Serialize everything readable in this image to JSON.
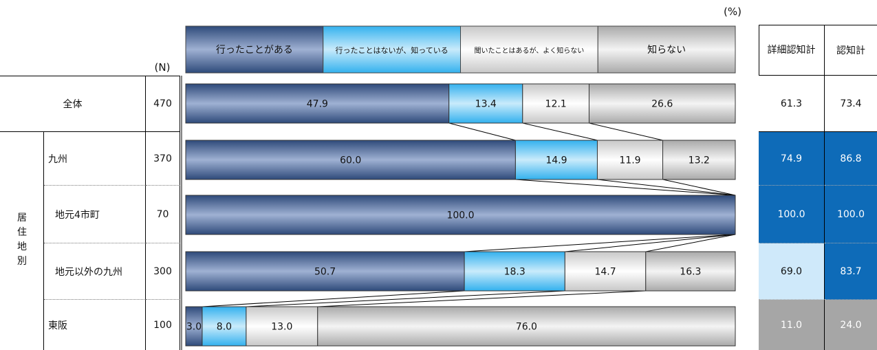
{
  "percent_unit": "(%)",
  "n_header": "(N)",
  "group_label": [
    "居",
    "住",
    "地",
    "別"
  ],
  "summary_headers": [
    "詳細認知計",
    "認知計"
  ],
  "chart_data": {
    "type": "bar",
    "stacked": true,
    "orientation": "horizontal",
    "xlim": [
      0,
      100
    ],
    "series": [
      {
        "name": "行ったことがある",
        "values": [
          47.9,
          60.0,
          100.0,
          50.7,
          3.0
        ]
      },
      {
        "name": "行ったことはないが、知っている",
        "values": [
          13.4,
          14.9,
          0,
          18.3,
          8.0
        ]
      },
      {
        "name": "聞いたことはあるが、よく知らない",
        "values": [
          12.1,
          11.9,
          0,
          14.7,
          13.0
        ]
      },
      {
        "name": "知らない",
        "values": [
          26.6,
          13.2,
          0,
          16.3,
          76.0
        ]
      }
    ],
    "colors": [
      "#3a5586",
      "#4bbaf0",
      "#e6e6e6",
      "#cfcfcf"
    ]
  },
  "rows": [
    {
      "label": "全体",
      "n": "470",
      "detail": "61.3",
      "total": "73.4",
      "detail_color": "#ffffff",
      "total_color": "#ffffff",
      "detail_text": "#111111",
      "total_text": "#111111"
    },
    {
      "label": "九州",
      "n": "370",
      "detail": "74.9",
      "total": "86.8",
      "detail_color": "#0e6bb8",
      "total_color": "#0e6bb8",
      "detail_text": "#ffffff",
      "total_text": "#ffffff"
    },
    {
      "label": "地元4市町",
      "n": "70",
      "detail": "100.0",
      "total": "100.0",
      "detail_color": "#0e6bb8",
      "total_color": "#0e6bb8",
      "detail_text": "#ffffff",
      "total_text": "#ffffff"
    },
    {
      "label": "地元以外の九州",
      "n": "300",
      "detail": "69.0",
      "total": "83.7",
      "detail_color": "#cfe9fa",
      "total_color": "#0e6bb8",
      "detail_text": "#111111",
      "total_text": "#ffffff"
    },
    {
      "label": "東阪",
      "n": "100",
      "detail": "11.0",
      "total": "24.0",
      "detail_color": "#a6a6a6",
      "total_color": "#a6a6a6",
      "detail_text": "#ffffff",
      "total_text": "#ffffff"
    }
  ]
}
